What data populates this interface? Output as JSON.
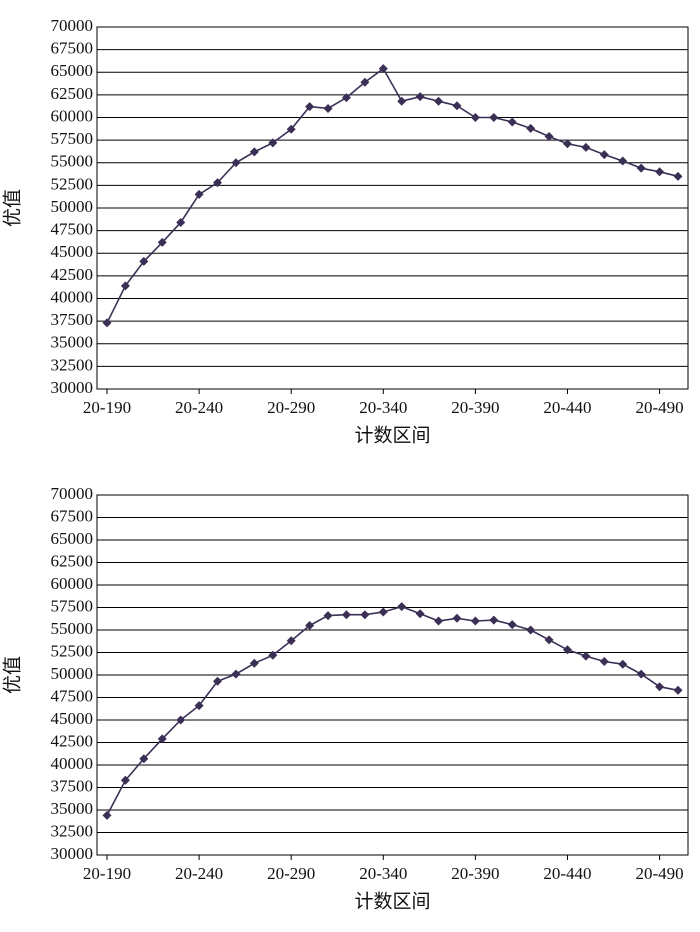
{
  "chart_data": [
    {
      "type": "line",
      "y_label": "优值",
      "x_label": "计数区间",
      "categories": [
        "20-190",
        null,
        null,
        null,
        null,
        "20-240",
        null,
        null,
        null,
        null,
        "20-290",
        null,
        null,
        null,
        null,
        "20-340",
        null,
        null,
        null,
        null,
        "20-390",
        null,
        null,
        null,
        null,
        "20-440",
        null,
        null,
        null,
        null,
        "20-490",
        null
      ],
      "series": [
        {
          "color": "#3b2f55",
          "values": [
            37300,
            41400,
            44100,
            46200,
            48400,
            51500,
            52800,
            55000,
            56200,
            57200,
            58700,
            61200,
            61000,
            62200,
            63900,
            65400,
            61800,
            62300,
            61800,
            61300,
            60000,
            60000,
            59500,
            58800,
            57900,
            57100,
            56700,
            55900,
            55200,
            54400,
            54000,
            53500
          ]
        }
      ],
      "ylim": [
        30000,
        70000
      ],
      "yticks": [
        30000,
        32500,
        35000,
        37500,
        40000,
        42500,
        45000,
        47500,
        50000,
        52500,
        55000,
        57500,
        60000,
        62500,
        65000,
        67500,
        70000
      ],
      "grid": true
    },
    {
      "type": "line",
      "y_label": "优值",
      "x_label": "计数区间",
      "categories": [
        "20-190",
        null,
        null,
        null,
        null,
        "20-240",
        null,
        null,
        null,
        null,
        "20-290",
        null,
        null,
        null,
        null,
        "20-340",
        null,
        null,
        null,
        null,
        "20-390",
        null,
        null,
        null,
        null,
        "20-440",
        null,
        null,
        null,
        null,
        "20-490",
        null
      ],
      "series": [
        {
          "color": "#3b2f55",
          "values": [
            34400,
            38300,
            40700,
            42900,
            45000,
            46600,
            49300,
            50100,
            51300,
            52200,
            53800,
            55500,
            56600,
            56700,
            56700,
            57000,
            57600,
            56800,
            56000,
            56300,
            56000,
            56100,
            55600,
            55000,
            53900,
            52800,
            52100,
            51500,
            51200,
            50100,
            48700,
            48300
          ]
        }
      ],
      "ylim": [
        30000,
        70000
      ],
      "yticks": [
        30000,
        32500,
        35000,
        37500,
        40000,
        42500,
        45000,
        47500,
        50000,
        52500,
        55000,
        57500,
        60000,
        62500,
        65000,
        67500,
        70000
      ],
      "grid": true
    }
  ]
}
